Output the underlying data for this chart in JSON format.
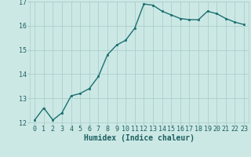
{
  "x": [
    0,
    1,
    2,
    3,
    4,
    5,
    6,
    7,
    8,
    9,
    10,
    11,
    12,
    13,
    14,
    15,
    16,
    17,
    18,
    19,
    20,
    21,
    22,
    23
  ],
  "y": [
    12.1,
    12.6,
    12.1,
    12.4,
    13.1,
    13.2,
    13.4,
    13.9,
    14.8,
    15.2,
    15.4,
    15.9,
    16.9,
    16.85,
    16.6,
    16.45,
    16.3,
    16.25,
    16.25,
    16.6,
    16.5,
    16.3,
    16.15,
    16.05
  ],
  "xlabel": "Humidex (Indice chaleur)",
  "ylim": [
    12,
    17
  ],
  "yticks": [
    12,
    13,
    14,
    15,
    16,
    17
  ],
  "background_color": "#cce8e5",
  "grid_color": "#aacfcc",
  "line_color": "#1a7070",
  "marker_color": "#1a7070",
  "tick_label_color": "#1a6060",
  "xlabel_color": "#1a6060",
  "xlabel_fontsize": 7,
  "tick_fontsize": 6,
  "line_width": 1.0,
  "marker_size": 2.0
}
